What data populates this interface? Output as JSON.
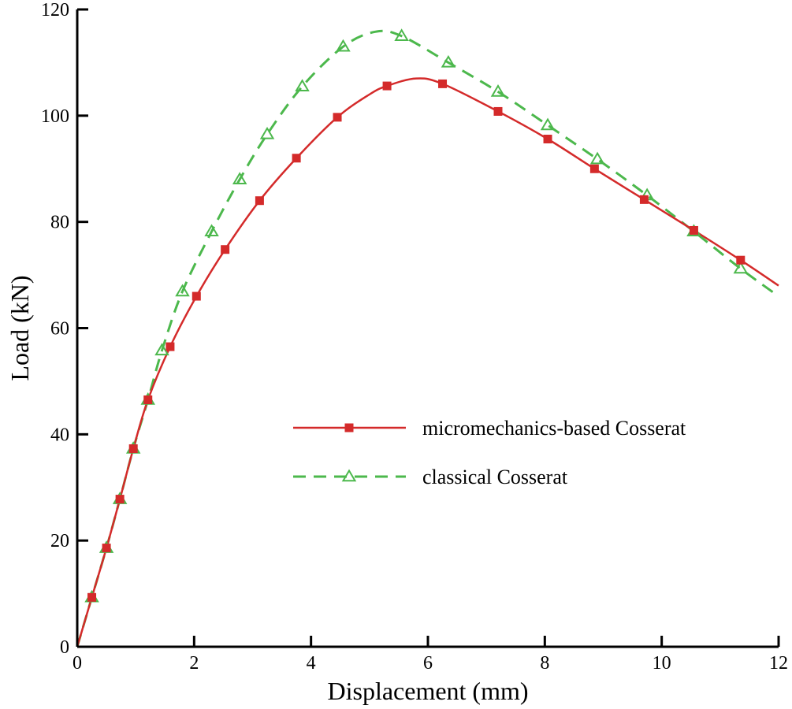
{
  "chart_data": {
    "type": "line",
    "title": "",
    "xlabel": "Displacement (mm)",
    "ylabel": "Load (kN)",
    "xlim": [
      0,
      12
    ],
    "ylim": [
      0,
      120
    ],
    "xticks": [
      0,
      2,
      4,
      6,
      8,
      10,
      12
    ],
    "yticks": [
      0,
      20,
      40,
      60,
      80,
      100,
      120
    ],
    "grid": false,
    "legend_position": "center-right",
    "series": [
      {
        "name": "micromechanics-based Cosserat",
        "color": "#d42a2a",
        "line_style": "solid",
        "marker": "square",
        "curve": [
          [
            0,
            0
          ],
          [
            0.25,
            9.3
          ],
          [
            0.5,
            18.6
          ],
          [
            0.73,
            27.8
          ],
          [
            0.96,
            37.3
          ],
          [
            1.21,
            46.5
          ],
          [
            1.59,
            56.5
          ],
          [
            2.04,
            66.0
          ],
          [
            2.53,
            74.8
          ],
          [
            3.12,
            84.0
          ],
          [
            3.75,
            92.0
          ],
          [
            4.45,
            99.7
          ],
          [
            5.0,
            104.0
          ],
          [
            5.3,
            105.6
          ],
          [
            5.8,
            107.0
          ],
          [
            6.25,
            106.0
          ],
          [
            7.2,
            100.8
          ],
          [
            8.05,
            95.6
          ],
          [
            8.85,
            90.0
          ],
          [
            9.7,
            84.2
          ],
          [
            10.55,
            78.4
          ],
          [
            11.35,
            72.8
          ],
          [
            12.0,
            68.0
          ]
        ],
        "markers": [
          [
            0.25,
            9.3
          ],
          [
            0.5,
            18.6
          ],
          [
            0.73,
            27.8
          ],
          [
            0.96,
            37.3
          ],
          [
            1.21,
            46.5
          ],
          [
            1.59,
            56.5
          ],
          [
            2.04,
            66.0
          ],
          [
            2.53,
            74.8
          ],
          [
            3.12,
            84.0
          ],
          [
            3.75,
            92.0
          ],
          [
            4.45,
            99.7
          ],
          [
            5.3,
            105.6
          ],
          [
            6.25,
            106.0
          ],
          [
            7.2,
            100.8
          ],
          [
            8.05,
            95.6
          ],
          [
            8.85,
            90.0
          ],
          [
            9.7,
            84.2
          ],
          [
            10.55,
            78.4
          ],
          [
            11.35,
            72.8
          ]
        ]
      },
      {
        "name": "classical Cosserat",
        "color": "#4cb84c",
        "line_style": "dashed",
        "marker": "triangle-open",
        "curve": [
          [
            0,
            0
          ],
          [
            0.25,
            9.3
          ],
          [
            0.5,
            18.6
          ],
          [
            0.73,
            27.8
          ],
          [
            0.96,
            37.3
          ],
          [
            1.21,
            46.5
          ],
          [
            1.45,
            55.8
          ],
          [
            1.8,
            66.9
          ],
          [
            2.3,
            78.2
          ],
          [
            2.78,
            88.0
          ],
          [
            3.25,
            96.5
          ],
          [
            3.85,
            105.5
          ],
          [
            4.55,
            113.0
          ],
          [
            5.1,
            115.8
          ],
          [
            5.55,
            115.0
          ],
          [
            6.35,
            110.0
          ],
          [
            7.2,
            104.5
          ],
          [
            8.05,
            98.2
          ],
          [
            8.9,
            91.8
          ],
          [
            9.75,
            85.0
          ],
          [
            10.55,
            78.2
          ],
          [
            11.35,
            71.2
          ],
          [
            12.0,
            66.0
          ]
        ],
        "markers": [
          [
            0.25,
            9.3
          ],
          [
            0.5,
            18.6
          ],
          [
            0.73,
            27.8
          ],
          [
            0.96,
            37.3
          ],
          [
            1.21,
            46.5
          ],
          [
            1.45,
            55.8
          ],
          [
            1.8,
            66.9
          ],
          [
            2.3,
            78.2
          ],
          [
            2.78,
            88.0
          ],
          [
            3.25,
            96.5
          ],
          [
            3.85,
            105.5
          ],
          [
            4.55,
            113.0
          ],
          [
            5.55,
            115.0
          ],
          [
            6.35,
            110.0
          ],
          [
            7.2,
            104.5
          ],
          [
            8.05,
            98.2
          ],
          [
            8.9,
            91.8
          ],
          [
            9.75,
            85.0
          ],
          [
            10.55,
            78.2
          ],
          [
            11.35,
            71.2
          ]
        ]
      }
    ]
  }
}
